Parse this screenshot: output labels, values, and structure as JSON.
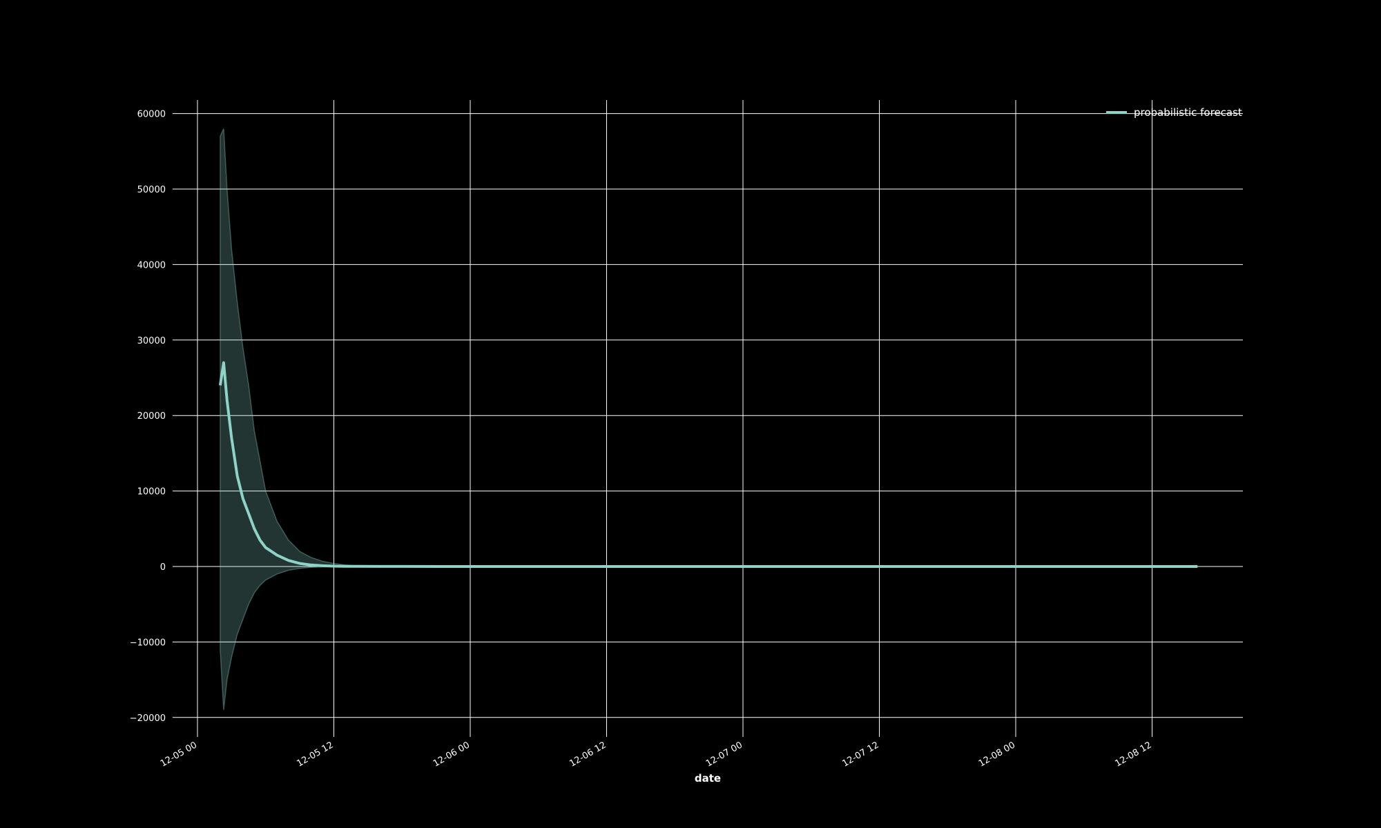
{
  "colors": {
    "background": "#000000",
    "grid": "#ffffff",
    "text": "#ffffff",
    "series": "#8dd3c7",
    "band": "#8dd3c7"
  },
  "chart_data": {
    "type": "line",
    "title": "",
    "xlabel": "date",
    "ylabel": "",
    "grid": true,
    "legend_position": "top-right",
    "x_ticks": [
      "12-05 00",
      "12-05 12",
      "12-06 00",
      "12-06 12",
      "12-07 00",
      "12-07 12",
      "12-08 00",
      "12-08 12"
    ],
    "x_tick_hours": [
      0,
      12,
      24,
      36,
      48,
      60,
      72,
      84
    ],
    "xlim_hours": [
      -2.5,
      89.5
    ],
    "y_ticks": [
      -20000,
      -10000,
      0,
      10000,
      20000,
      30000,
      40000,
      50000,
      60000
    ],
    "ylim": [
      -22000,
      62000
    ],
    "series": [
      {
        "name": "probabilistic forecast",
        "kind": "median-line",
        "x_hours": [
          2.0,
          2.3,
          2.6,
          3.0,
          3.5,
          4.0,
          4.5,
          5.0,
          5.5,
          6.0,
          7.0,
          8.0,
          9.0,
          10.0,
          11.0,
          12.0,
          13.0,
          14.0,
          16.0,
          18.0,
          24.0,
          36.0,
          48.0,
          60.0,
          72.0,
          84.0,
          88.0
        ],
        "values": [
          24000,
          27000,
          22000,
          17000,
          12000,
          9000,
          7000,
          5000,
          3500,
          2500,
          1500,
          800,
          400,
          200,
          100,
          50,
          30,
          20,
          10,
          5,
          2,
          1,
          1,
          1,
          1,
          1,
          1
        ]
      }
    ],
    "band": {
      "x_hours": [
        2.0,
        2.3,
        2.6,
        3.0,
        3.5,
        4.0,
        4.5,
        5.0,
        5.5,
        6.0,
        7.0,
        8.0,
        9.0,
        10.0,
        11.0,
        12.0,
        13.0,
        14.0,
        16.0,
        18.0,
        24.0,
        88.0
      ],
      "upper": [
        57000,
        58000,
        50000,
        42000,
        35000,
        29000,
        24000,
        18000,
        14000,
        10000,
        6000,
        3500,
        2000,
        1200,
        700,
        400,
        200,
        100,
        50,
        20,
        5,
        2
      ],
      "lower": [
        -11000,
        -19000,
        -15000,
        -12000,
        -9000,
        -7000,
        -5000,
        -3500,
        -2500,
        -1800,
        -1000,
        -500,
        -250,
        -120,
        -60,
        -30,
        -15,
        -8,
        -4,
        -2,
        -1,
        -1
      ]
    }
  }
}
